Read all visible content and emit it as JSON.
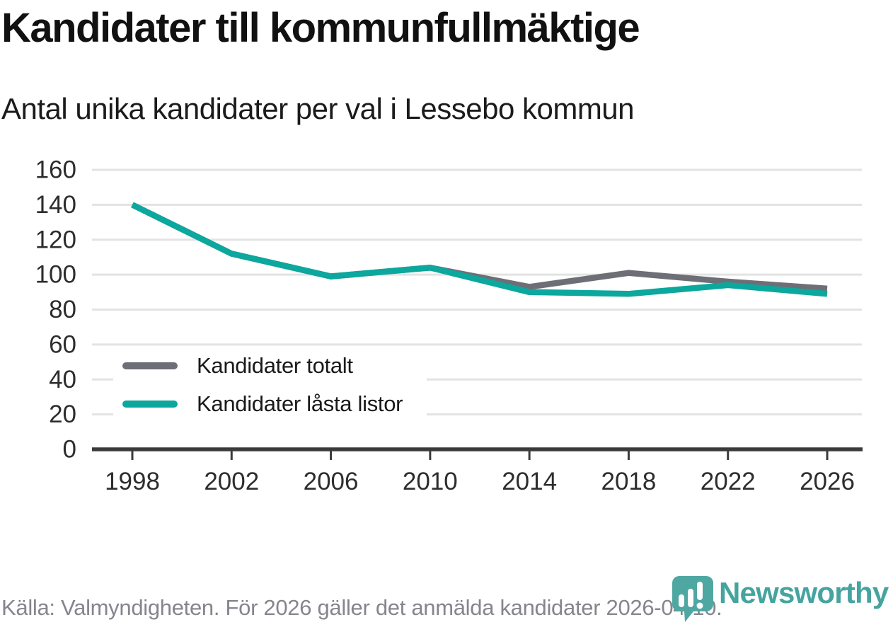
{
  "chart_data": {
    "type": "line",
    "title": "Kandidater till kommunfullmäktige",
    "subtitle": "Antal unika kandidater per val i Lessebo kommun",
    "x": [
      1998,
      2002,
      2006,
      2010,
      2014,
      2018,
      2022,
      2026
    ],
    "series": [
      {
        "name": "Kandidater totalt",
        "color": "#6e6e76",
        "values": [
          140,
          112,
          99,
          104,
          93,
          101,
          96,
          92
        ]
      },
      {
        "name": "Kandidater låsta listor",
        "color": "#0ca79d",
        "values": [
          140,
          112,
          99,
          104,
          90,
          89,
          94,
          89
        ]
      }
    ],
    "ylim": [
      0,
      160
    ],
    "ytick_step": 20,
    "xlabel": "",
    "ylabel": "",
    "grid": "horizontal",
    "legend_position": "inside-left",
    "axis_color": "#3b3b3b",
    "grid_color": "#e3e3e3",
    "tick_label_color": "#2d2d2d"
  },
  "footer": {
    "source": "Källa: Valmyndigheten. För 2026 gäller det anmälda kandidater 2026-04-10.",
    "brand": "Newsworthy"
  }
}
